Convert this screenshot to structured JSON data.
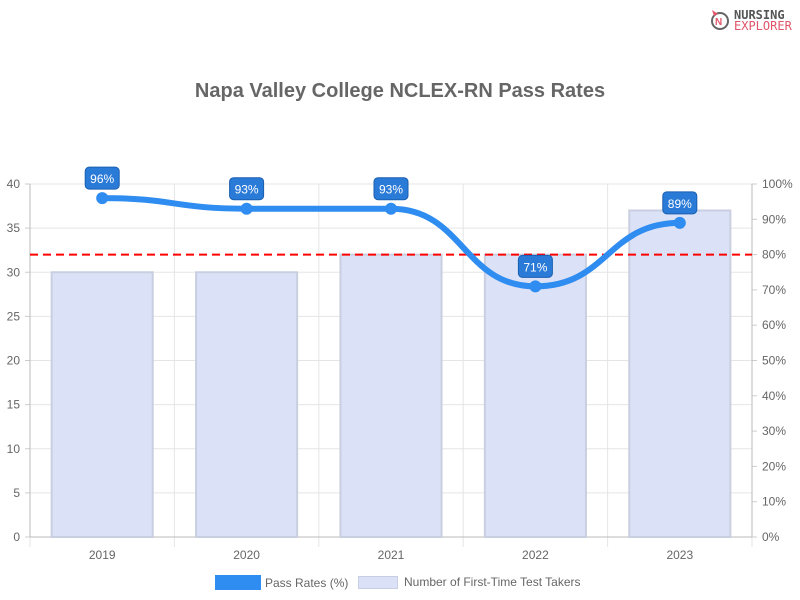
{
  "logo": {
    "line1": "NURSING",
    "line2": "EXPLORER"
  },
  "chart_data": {
    "type": "bar+line",
    "title": "Napa Valley College NCLEX-RN Pass Rates",
    "categories": [
      "2019",
      "2020",
      "2021",
      "2022",
      "2023"
    ],
    "series": [
      {
        "name": "Pass Rates (%)",
        "type": "line",
        "axis": "right",
        "values": [
          96,
          93,
          93,
          71,
          89
        ],
        "color": "#2f8cf0"
      },
      {
        "name": "Number of First-Time Test Takers",
        "type": "bar",
        "axis": "left",
        "values": [
          30,
          30,
          32,
          32,
          37
        ],
        "color": "#dbe2f7"
      }
    ],
    "left_axis": {
      "range": [
        0,
        40
      ],
      "ticks": [
        "0",
        "5",
        "10",
        "15",
        "20",
        "25",
        "30",
        "35",
        "40"
      ]
    },
    "right_axis": {
      "range": [
        0,
        100
      ],
      "ticks": [
        "0%",
        "10%",
        "20%",
        "30%",
        "40%",
        "50%",
        "60%",
        "70%",
        "80%",
        "90%",
        "100%"
      ]
    },
    "reference_line": {
      "value": 80,
      "axis": "right",
      "color": "#ff0000",
      "style": "dashed"
    },
    "data_labels": [
      "96%",
      "93%",
      "93%",
      "71%",
      "89%"
    ],
    "grid": true,
    "legend": "bottom"
  }
}
